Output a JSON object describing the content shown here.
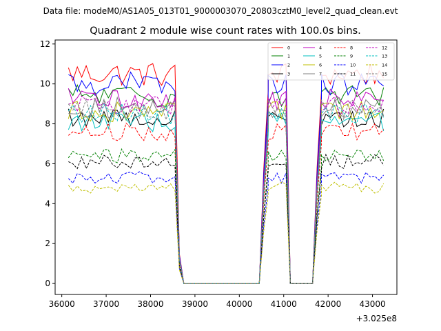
{
  "chart_data": {
    "type": "line",
    "suptitle": "Data file: modeM0/AS1A05_013T01_9000003070_20803cztM0_level2_quad_clean.evt",
    "title": "Quadrant 2 module wise count rates with 100.0s bins.",
    "xlabel": "",
    "ylabel": "",
    "x_offset_label": "+3.025e8",
    "xlim": [
      35850,
      43550
    ],
    "ylim": [
      -0.55,
      12.2
    ],
    "xticks": [
      36000,
      37000,
      38000,
      39000,
      40000,
      41000,
      42000,
      43000
    ],
    "xtick_labels": [
      "36000",
      "37000",
      "38000",
      "39000",
      "40000",
      "41000",
      "42000",
      "43000"
    ],
    "yticks": [
      0,
      2,
      4,
      6,
      8,
      10,
      12
    ],
    "ytick_labels": [
      "0",
      "2",
      "4",
      "6",
      "8",
      "10",
      "12"
    ],
    "legend_position": "top-right",
    "segments": [
      {
        "start": 36150,
        "end": 38550,
        "kind": "active"
      },
      {
        "start": 38650,
        "end": 38750,
        "kind": "drop"
      },
      {
        "start": 38750,
        "end": 40450,
        "kind": "zero"
      },
      {
        "start": 40550,
        "end": 40650,
        "kind": "rise"
      },
      {
        "start": 40650,
        "end": 41050,
        "kind": "active"
      },
      {
        "start": 41150,
        "end": 41650,
        "kind": "zero"
      },
      {
        "start": 41750,
        "end": 41850,
        "kind": "rise"
      },
      {
        "start": 41850,
        "end": 43250,
        "kind": "active"
      }
    ],
    "series": [
      {
        "name": "0",
        "color": "#ff0000",
        "dash": "solid",
        "level": 10.5
      },
      {
        "name": "1",
        "color": "#008000",
        "dash": "solid",
        "level": 9.4
      },
      {
        "name": "2",
        "color": "#0000ff",
        "dash": "solid",
        "level": 10.0
      },
      {
        "name": "3",
        "color": "#000000",
        "dash": "solid",
        "level": 8.3
      },
      {
        "name": "4",
        "color": "#bf00bf",
        "dash": "solid",
        "level": 9.2
      },
      {
        "name": "5",
        "color": "#00bfbf",
        "dash": "solid",
        "level": 8.1
      },
      {
        "name": "6",
        "color": "#bfbf00",
        "dash": "solid",
        "level": 8.6
      },
      {
        "name": "7",
        "color": "#808080",
        "dash": "solid",
        "level": 8.8
      },
      {
        "name": "8",
        "color": "#ff0000",
        "dash": "dashed",
        "level": 7.6
      },
      {
        "name": "9",
        "color": "#008000",
        "dash": "dashed",
        "level": 6.4
      },
      {
        "name": "10",
        "color": "#0000ff",
        "dash": "dashed",
        "level": 5.3
      },
      {
        "name": "11",
        "color": "#000000",
        "dash": "dashed",
        "level": 6.1
      },
      {
        "name": "12",
        "color": "#bf00bf",
        "dash": "dashed",
        "level": 8.9
      },
      {
        "name": "13",
        "color": "#00bfbf",
        "dash": "dashed",
        "level": 8.5
      },
      {
        "name": "14",
        "color": "#bfbf00",
        "dash": "dashed",
        "level": 4.8
      },
      {
        "name": "15",
        "color": "#808080",
        "dash": "dashed",
        "level": 8.7
      }
    ]
  }
}
